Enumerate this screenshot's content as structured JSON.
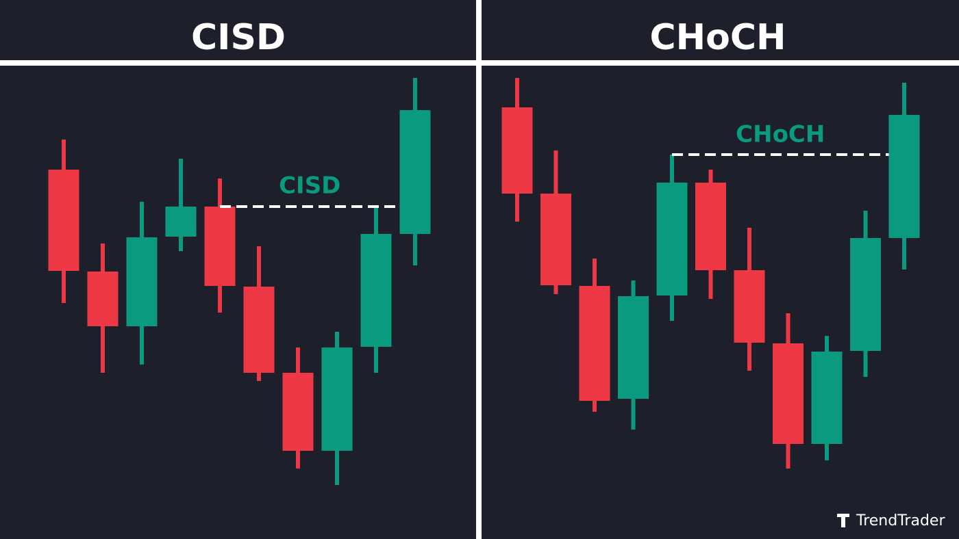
{
  "brand": "TrendTrader",
  "chart_data": [
    {
      "type": "candlestick",
      "title": "CISD",
      "annotation": "CISD",
      "up_color": "#0a9a7f",
      "down_color": "#ef3846",
      "ylim": [
        0,
        688
      ],
      "open": [
        540,
        391,
        311,
        442,
        486,
        369,
        243,
        129,
        281,
        446
      ],
      "high": [
        584,
        432,
        493,
        556,
        527,
        428,
        280,
        303,
        486,
        674
      ],
      "low": [
        345,
        243,
        255,
        421,
        331,
        231,
        103,
        79,
        243,
        400
      ],
      "close": [
        392,
        311,
        441,
        486,
        370,
        243,
        129,
        280,
        446,
        627
      ]
    },
    {
      "type": "candlestick",
      "title": "CHoCH",
      "annotation": "CHoCH",
      "up_color": "#0a9a7f",
      "down_color": "#ef3846",
      "ylim": [
        0,
        688
      ],
      "open": [
        631,
        505,
        370,
        205,
        356,
        521,
        393,
        286,
        139,
        275,
        440
      ],
      "high": [
        674,
        568,
        410,
        378,
        562,
        540,
        455,
        330,
        297,
        480,
        667
      ],
      "low": [
        464,
        358,
        186,
        160,
        319,
        351,
        246,
        103,
        115,
        237,
        394
      ],
      "close": [
        505,
        371,
        202,
        355,
        521,
        393,
        287,
        139,
        274,
        440,
        620
      ]
    }
  ]
}
